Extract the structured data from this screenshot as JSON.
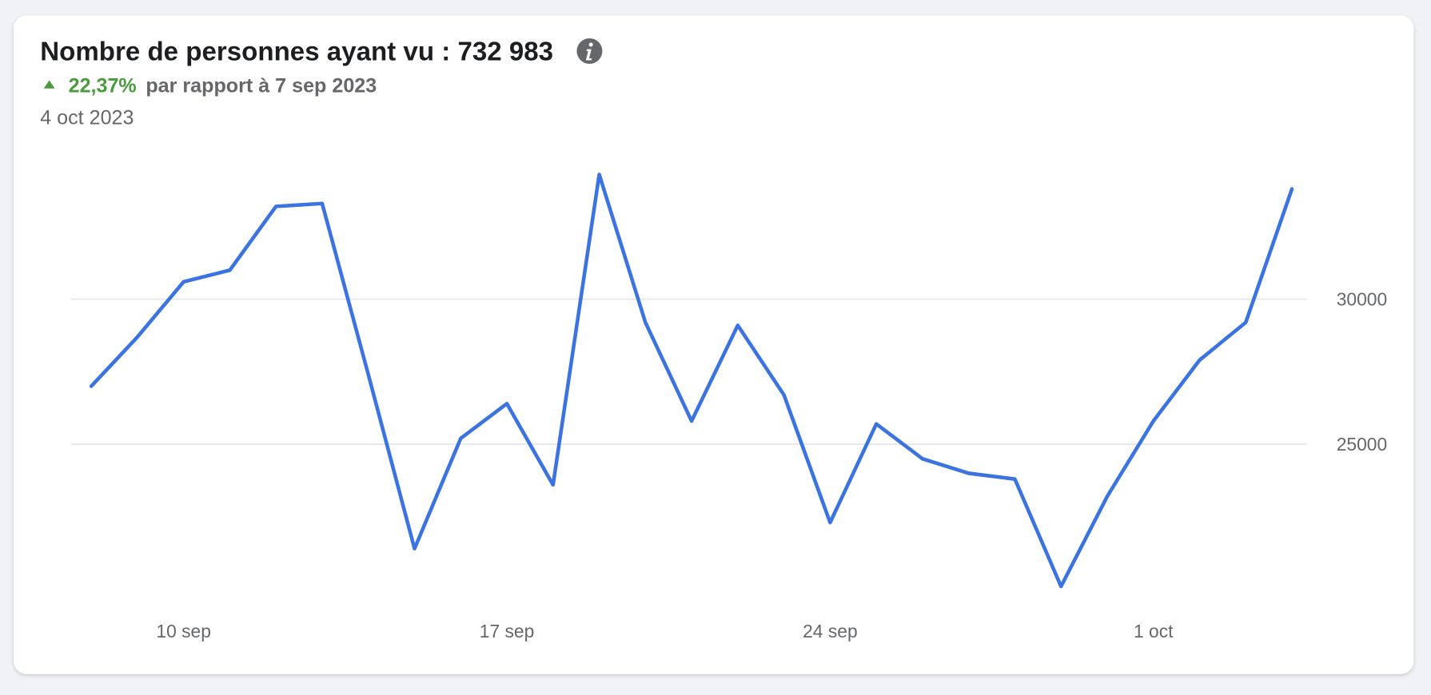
{
  "header": {
    "title": "Nombre de personnes ayant vu : 732 983",
    "change": "22,37%",
    "comparison": "par rapport à 7 sep 2023",
    "date": "4 oct 2023"
  },
  "chart_data": {
    "type": "line",
    "categories": [
      null,
      null,
      "10 sep",
      null,
      null,
      null,
      null,
      null,
      null,
      "17 sep",
      null,
      null,
      null,
      null,
      null,
      null,
      "24 sep",
      null,
      null,
      null,
      null,
      null,
      null,
      "1 oct",
      null,
      null,
      null
    ],
    "series": [
      {
        "name": "Nombre de personnes ayant vu",
        "color": "#3b73e0",
        "values": [
          27000,
          28700,
          30600,
          31000,
          33200,
          33300,
          27400,
          21400,
          25200,
          26400,
          23600,
          34300,
          29200,
          25800,
          29100,
          26700,
          22300,
          25700,
          24500,
          24000,
          23800,
          20100,
          23200,
          25800,
          27900,
          29200,
          33800
        ]
      }
    ],
    "ylim": [
      19500,
      34800
    ],
    "yticks": [
      25000,
      30000
    ],
    "grid": true
  }
}
